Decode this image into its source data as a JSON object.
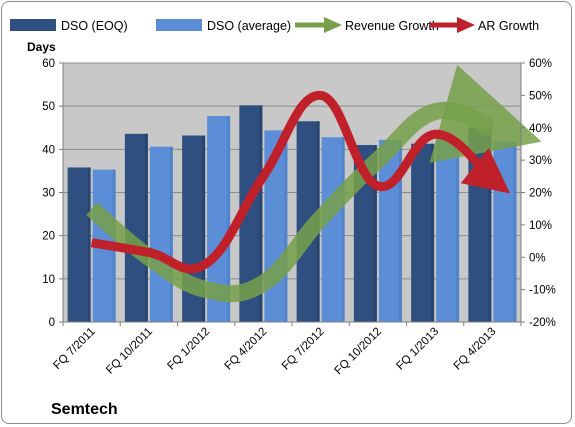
{
  "chart_data": {
    "type": "bar",
    "title": "",
    "company_label": "Semtech",
    "y_left_label": "Days",
    "y_left_lim": [
      0,
      60
    ],
    "y_left_ticks": [
      "0",
      "10",
      "20",
      "30",
      "40",
      "50",
      "60"
    ],
    "y_right_lim": [
      -20,
      60
    ],
    "y_right_ticks": [
      "-20%",
      "-10%",
      "0%",
      "10%",
      "20%",
      "30%",
      "40%",
      "50%",
      "60%"
    ],
    "categories": [
      "FQ 7/2011",
      "FQ 10/2011",
      "FQ 1/2012",
      "FQ 4/2012",
      "FQ 7/2012",
      "FQ 10/2012",
      "FQ 1/2013",
      "FQ 4/2013"
    ],
    "series": [
      {
        "name": "DSO (EOQ)",
        "type": "bar",
        "axis": "left",
        "color": "#2e4f7f",
        "values": [
          35.8,
          43.6,
          43.2,
          50.2,
          46.5,
          41.0,
          41.3,
          45.0
        ]
      },
      {
        "name": "DSO (average)",
        "type": "bar",
        "axis": "left",
        "color": "#5b8ed6",
        "values": [
          35.3,
          40.6,
          47.7,
          44.4,
          42.8,
          42.2,
          42.5,
          41.8
        ]
      },
      {
        "name": "Revenue Growth",
        "type": "line",
        "axis": "right",
        "color": "#77a04a",
        "values": [
          15,
          0,
          -10,
          -8,
          12,
          30,
          45,
          40
        ]
      },
      {
        "name": "AR Growth",
        "type": "line",
        "axis": "right",
        "color": "#c0202a",
        "values": [
          4.5,
          1.5,
          -2,
          25,
          50,
          22,
          38,
          24
        ]
      }
    ],
    "grid": true,
    "legend_position": "top"
  }
}
